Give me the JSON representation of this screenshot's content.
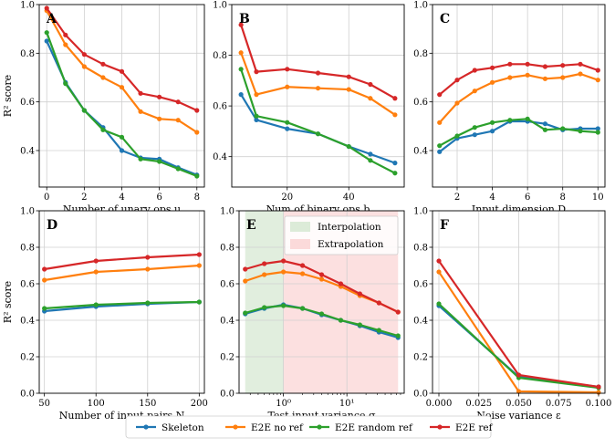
{
  "colors": {
    "Skeleton": "#1f77b4",
    "E2E no ref": "#ff7f0e",
    "E2E random ref": "#2ca02c",
    "E2E ref": "#d62728",
    "interpolation_band": "#dcebd8",
    "extrapolation_band": "#fbdada"
  },
  "legend": {
    "position": "bottom-center",
    "entries": [
      "Skeleton",
      "E2E no ref",
      "E2E random ref",
      "E2E ref"
    ]
  },
  "chart_data": [
    {
      "type": "line",
      "panel": "A",
      "title": "",
      "xlabel": "Number of unary ops u",
      "ylabel": "R² score",
      "xlim": [
        -0.4,
        8.4
      ],
      "ylim": [
        0.25,
        1.0
      ],
      "grid": true,
      "xticks": [
        0,
        2,
        4,
        6,
        8
      ],
      "yticks": [
        0.4,
        0.6,
        0.8,
        1.0
      ],
      "x": [
        0,
        1,
        2,
        3,
        4,
        5,
        6,
        7,
        8
      ],
      "series": [
        {
          "name": "Skeleton",
          "values": [
            0.85,
            0.68,
            0.565,
            0.495,
            0.4,
            0.37,
            0.365,
            0.33,
            0.3
          ]
        },
        {
          "name": "E2E no ref",
          "values": [
            0.975,
            0.835,
            0.745,
            0.7,
            0.66,
            0.56,
            0.53,
            0.525,
            0.475
          ]
        },
        {
          "name": "E2E random ref",
          "values": [
            0.885,
            0.675,
            0.565,
            0.485,
            0.455,
            0.365,
            0.355,
            0.325,
            0.295
          ]
        },
        {
          "name": "E2E ref",
          "values": [
            0.985,
            0.875,
            0.795,
            0.755,
            0.725,
            0.635,
            0.62,
            0.6,
            0.565
          ]
        }
      ]
    },
    {
      "type": "line",
      "panel": "B",
      "title": "",
      "xlabel": "Num of binary ops b",
      "ylabel": "",
      "xlim": [
        2,
        58
      ],
      "ylim": [
        0.28,
        1.0
      ],
      "grid": true,
      "xticks": [
        20,
        40
      ],
      "yticks": [
        0.4,
        0.6,
        0.8,
        1.0
      ],
      "x": [
        5,
        10,
        20,
        30,
        40,
        47,
        55
      ],
      "series": [
        {
          "name": "Skeleton",
          "values": [
            0.645,
            0.545,
            0.51,
            0.49,
            0.44,
            0.41,
            0.375
          ]
        },
        {
          "name": "E2E no ref",
          "values": [
            0.81,
            0.645,
            0.675,
            0.67,
            0.665,
            0.63,
            0.565
          ]
        },
        {
          "name": "E2E random ref",
          "values": [
            0.745,
            0.56,
            0.535,
            0.49,
            0.44,
            0.385,
            0.335
          ]
        },
        {
          "name": "E2E ref",
          "values": [
            0.92,
            0.735,
            0.745,
            0.73,
            0.715,
            0.685,
            0.63
          ]
        }
      ]
    },
    {
      "type": "line",
      "panel": "C",
      "title": "",
      "xlabel": "Input dimension D",
      "ylabel": "",
      "xlim": [
        0.6,
        10.4
      ],
      "ylim": [
        0.25,
        1.0
      ],
      "grid": true,
      "xticks": [
        2,
        4,
        6,
        8,
        10
      ],
      "yticks": [
        0.4,
        0.6,
        0.8,
        1.0
      ],
      "x": [
        1,
        2,
        3,
        4,
        5,
        6,
        7,
        8,
        9,
        10
      ],
      "series": [
        {
          "name": "Skeleton",
          "values": [
            0.395,
            0.45,
            0.465,
            0.48,
            0.52,
            0.52,
            0.51,
            0.485,
            0.49,
            0.49
          ]
        },
        {
          "name": "E2E no ref",
          "values": [
            0.515,
            0.595,
            0.645,
            0.68,
            0.7,
            0.71,
            0.695,
            0.7,
            0.715,
            0.69
          ]
        },
        {
          "name": "E2E random ref",
          "values": [
            0.42,
            0.46,
            0.495,
            0.515,
            0.525,
            0.53,
            0.485,
            0.49,
            0.48,
            0.475
          ]
        },
        {
          "name": "E2E ref",
          "values": [
            0.63,
            0.69,
            0.73,
            0.74,
            0.755,
            0.755,
            0.745,
            0.75,
            0.755,
            0.73
          ]
        }
      ]
    },
    {
      "type": "line",
      "panel": "D",
      "title": "",
      "xlabel": "Number of input pairs N",
      "ylabel": "R² score",
      "xlim": [
        45,
        205
      ],
      "ylim": [
        0.0,
        1.0
      ],
      "grid": true,
      "xticks": [
        50,
        100,
        150,
        200
      ],
      "yticks": [
        0.0,
        0.2,
        0.4,
        0.6,
        0.8,
        1.0
      ],
      "x": [
        50,
        100,
        150,
        200
      ],
      "series": [
        {
          "name": "Skeleton",
          "values": [
            0.45,
            0.475,
            0.49,
            0.5
          ]
        },
        {
          "name": "E2E no ref",
          "values": [
            0.62,
            0.665,
            0.68,
            0.7
          ]
        },
        {
          "name": "E2E random ref",
          "values": [
            0.465,
            0.485,
            0.495,
            0.5
          ]
        },
        {
          "name": "E2E ref",
          "values": [
            0.68,
            0.725,
            0.745,
            0.76
          ]
        }
      ]
    },
    {
      "type": "line",
      "panel": "E",
      "title": "",
      "xlabel": "Test input variance σ",
      "ylabel": "",
      "xscale": "log",
      "xlim": [
        0.2,
        80
      ],
      "ylim": [
        0.0,
        1.0
      ],
      "grid": true,
      "xticks": [
        1,
        10
      ],
      "xtick_labels": [
        "10⁰",
        "10¹"
      ],
      "yticks": [
        0.0,
        0.2,
        0.4,
        0.6,
        0.8,
        1.0
      ],
      "regions": [
        {
          "name": "Interpolation",
          "from": 0.25,
          "to": 1.0
        },
        {
          "name": "Extrapolation",
          "from": 1.0,
          "to": 64
        }
      ],
      "x": [
        0.25,
        0.5,
        1,
        2,
        4,
        8,
        16,
        32,
        64
      ],
      "series": [
        {
          "name": "Skeleton",
          "values": [
            0.435,
            0.465,
            0.485,
            0.465,
            0.43,
            0.4,
            0.37,
            0.335,
            0.305
          ]
        },
        {
          "name": "E2E no ref",
          "values": [
            0.615,
            0.65,
            0.665,
            0.655,
            0.625,
            0.585,
            0.535,
            0.495,
            0.445
          ]
        },
        {
          "name": "E2E random ref",
          "values": [
            0.44,
            0.47,
            0.48,
            0.465,
            0.435,
            0.4,
            0.375,
            0.345,
            0.315
          ]
        },
        {
          "name": "E2E ref",
          "values": [
            0.68,
            0.71,
            0.725,
            0.7,
            0.65,
            0.6,
            0.545,
            0.495,
            0.445
          ]
        }
      ]
    },
    {
      "type": "line",
      "panel": "F",
      "title": "",
      "xlabel": "Noise variance ε",
      "ylabel": "",
      "xlim": [
        -0.004,
        0.104
      ],
      "ylim": [
        0.0,
        1.0
      ],
      "grid": true,
      "xticks": [
        0.0,
        0.025,
        0.05,
        0.075,
        0.1
      ],
      "xtick_labels": [
        "0.000",
        "0.025",
        "0.050",
        "0.075",
        "0.100"
      ],
      "yticks": [
        0.0,
        0.2,
        0.4,
        0.6,
        0.8,
        1.0
      ],
      "x": [
        0.0,
        0.05,
        0.1
      ],
      "series": [
        {
          "name": "Skeleton",
          "values": [
            0.48,
            0.09,
            0.035
          ]
        },
        {
          "name": "E2E no ref",
          "values": [
            0.665,
            0.01,
            0.005
          ]
        },
        {
          "name": "E2E random ref",
          "values": [
            0.49,
            0.085,
            0.03
          ]
        },
        {
          "name": "E2E ref",
          "values": [
            0.725,
            0.1,
            0.035
          ]
        }
      ]
    }
  ]
}
